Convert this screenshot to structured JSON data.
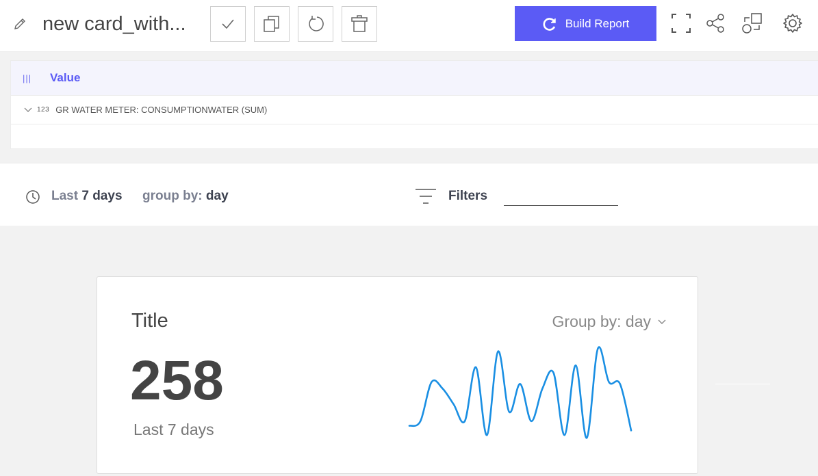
{
  "toolbar": {
    "card_title": "new card_with...",
    "build_report_label": "Build Report",
    "icons": [
      "pencil-icon",
      "check-icon",
      "duplicate-icon",
      "reload-icon",
      "trash-icon",
      "refresh-icon",
      "fullscreen-icon",
      "share-icon",
      "swap-icon",
      "gear-icon"
    ]
  },
  "value_panel": {
    "header_label": "Value",
    "header_icon": "|||",
    "rows": [
      {
        "type_icon": "123",
        "label": "GR WATER METER: CONSUMPTIONWATER (SUM)"
      }
    ]
  },
  "filterbar": {
    "range_prefix": "Last",
    "range_value": "7 days",
    "groupby_prefix": "group by:",
    "groupby_value": "day",
    "filters_label": "Filters",
    "filters_value": ""
  },
  "card": {
    "title": "Title",
    "value": "258",
    "period": "Last 7 days",
    "group_by_label": "Group by: day",
    "sparkline_color": "#1a8fe3"
  },
  "chart_data": {
    "type": "line",
    "series": [
      {
        "values": [
          0.15,
          0.2,
          0.62,
          0.55,
          0.38,
          0.2,
          0.78,
          0.05,
          0.95,
          0.3,
          0.6,
          0.2,
          0.55,
          0.72,
          0.05,
          0.8,
          0.02,
          0.98,
          0.62,
          0.6,
          0.1
        ]
      }
    ]
  }
}
